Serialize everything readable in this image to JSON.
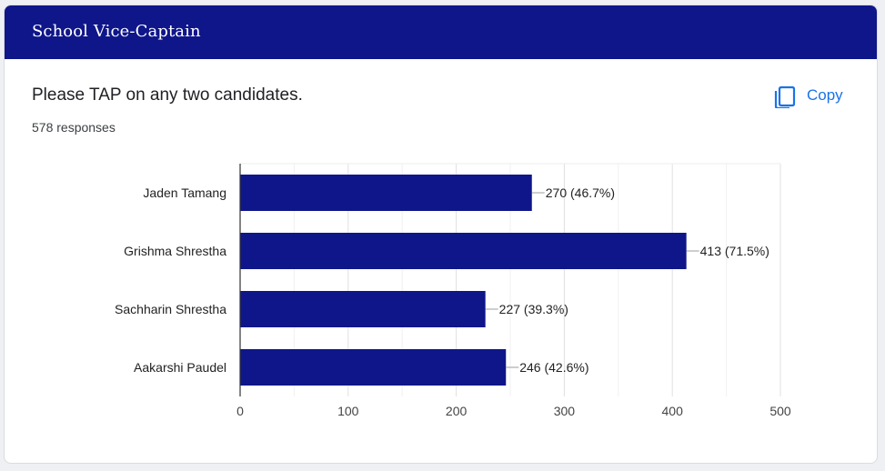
{
  "header": {
    "title": "School Vice-Captain"
  },
  "question": {
    "title": "Please TAP on any two candidates.",
    "responses": "578 responses"
  },
  "copy_button": {
    "label": "Copy",
    "icon": "copy-icon"
  },
  "colors": {
    "header_bg": "#0f1689",
    "bar": "#0f1689",
    "link": "#1a73e8"
  },
  "chart_data": {
    "type": "bar",
    "orientation": "horizontal",
    "categories": [
      "Jaden Tamang",
      "Grishma Shrestha",
      "Sachharin Shrestha",
      "Aakarshi Paudel"
    ],
    "values": [
      270,
      413,
      227,
      246
    ],
    "data_labels": [
      "270 (46.7%)",
      "413 (71.5%)",
      "227 (39.3%)",
      "246 (42.6%)"
    ],
    "xlim": [
      0,
      500
    ],
    "xticks": [
      0,
      100,
      200,
      300,
      400,
      500
    ],
    "grid": true,
    "title": "",
    "xlabel": "",
    "ylabel": ""
  }
}
